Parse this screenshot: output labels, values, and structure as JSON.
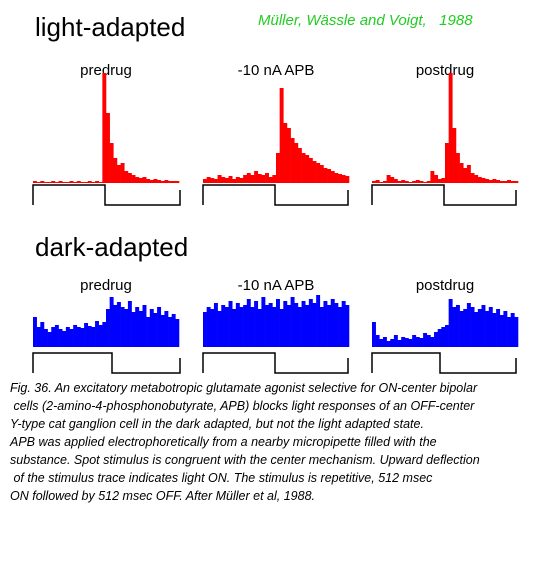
{
  "light_title": "light-adapted",
  "citation": "Müller, Wässle and Voigt,   1988",
  "dark_title": "dark-adapted",
  "chart_data": [
    {
      "type": "bar",
      "title": "predrug",
      "color": "#ff0000",
      "ylim": [
        0,
        110
      ],
      "values": [
        2,
        1,
        2,
        1,
        1,
        2,
        1,
        2,
        1,
        1,
        2,
        1,
        2,
        1,
        1,
        2,
        1,
        2,
        1,
        110,
        70,
        40,
        25,
        18,
        20,
        12,
        10,
        8,
        6,
        5,
        6,
        4,
        3,
        4,
        3,
        2,
        3,
        2,
        2,
        2
      ]
    },
    {
      "type": "bar",
      "title": "-10 nA APB",
      "color": "#ff0000",
      "ylim": [
        0,
        110
      ],
      "values": [
        4,
        6,
        5,
        4,
        8,
        6,
        5,
        7,
        4,
        6,
        5,
        8,
        10,
        8,
        12,
        9,
        8,
        10,
        6,
        8,
        30,
        95,
        60,
        55,
        45,
        40,
        35,
        30,
        28,
        25,
        22,
        20,
        18,
        15,
        14,
        12,
        10,
        9,
        8,
        7
      ]
    },
    {
      "type": "bar",
      "title": "postdrug",
      "color": "#ff0000",
      "ylim": [
        0,
        110
      ],
      "values": [
        2,
        3,
        1,
        2,
        8,
        6,
        4,
        2,
        3,
        2,
        1,
        2,
        3,
        2,
        1,
        2,
        12,
        8,
        4,
        5,
        40,
        110,
        55,
        30,
        20,
        15,
        18,
        10,
        8,
        6,
        5,
        4,
        3,
        4,
        3,
        2,
        2,
        3,
        2,
        2
      ]
    },
    {
      "type": "bar",
      "title": "predrug",
      "color": "#0000ff",
      "ylim": [
        0,
        110
      ],
      "values": [
        30,
        20,
        25,
        18,
        15,
        20,
        22,
        18,
        16,
        20,
        18,
        22,
        20,
        19,
        24,
        21,
        20,
        26,
        22,
        25,
        38,
        50,
        42,
        45,
        40,
        38,
        46,
        35,
        40,
        36,
        42,
        30,
        38,
        34,
        40,
        32,
        36,
        30,
        33,
        28
      ]
    },
    {
      "type": "bar",
      "title": "-10 nA APB",
      "color": "#0000ff",
      "ylim": [
        0,
        110
      ],
      "values": [
        35,
        40,
        38,
        44,
        36,
        42,
        40,
        46,
        38,
        44,
        40,
        42,
        48,
        40,
        46,
        38,
        50,
        42,
        44,
        40,
        48,
        38,
        46,
        42,
        50,
        44,
        40,
        46,
        42,
        48,
        44,
        52,
        40,
        46,
        42,
        48,
        44,
        40,
        46,
        42
      ]
    },
    {
      "type": "bar",
      "title": "postdrug",
      "color": "#0000ff",
      "ylim": [
        0,
        110
      ],
      "values": [
        25,
        12,
        8,
        10,
        6,
        8,
        12,
        7,
        10,
        9,
        8,
        12,
        10,
        9,
        14,
        12,
        10,
        15,
        18,
        20,
        22,
        48,
        40,
        42,
        36,
        38,
        44,
        40,
        35,
        38,
        42,
        36,
        40,
        34,
        38,
        32,
        36,
        30,
        34,
        30
      ]
    }
  ],
  "caption": [
    "Fig. 36. An excitatory metabotropic glutamate agonist selective for ON-center bipolar",
    " cells (2-amino-4-phosphonobutyrate, APB) blocks light responses of an OFF-center",
    "Y-type cat ganglion cell in the dark adapted, but not the light adapted state.",
    "APB was applied electrophoretically from a nearby micropipette filled with the",
    "substance. Spot stimulus is congruent with the center mechanism. Upward deflection",
    " of the stimulus trace indicates light ON. The stimulus is repetitive, 512 msec",
    "ON followed by 512 msec OFF. After Müller et al, 1988."
  ]
}
